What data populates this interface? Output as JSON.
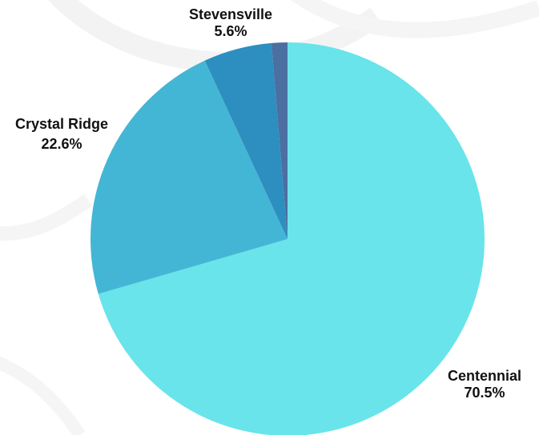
{
  "chart_data": {
    "type": "pie",
    "title": "",
    "start": "12 o'clock, clockwise",
    "slices": [
      {
        "label": "Centennial",
        "pct_label": "70.5%",
        "value": 70.5,
        "color": "#69e4ea"
      },
      {
        "label": "Crystal Ridge",
        "pct_label": "22.6%",
        "value": 22.6,
        "color": "#44b6d5"
      },
      {
        "label": "Stevensville",
        "pct_label": "5.6%",
        "value": 5.6,
        "color": "#2d8fbf"
      },
      {
        "label": "",
        "pct_label": "",
        "value": 1.3,
        "color": "#4b6fa1"
      }
    ]
  }
}
